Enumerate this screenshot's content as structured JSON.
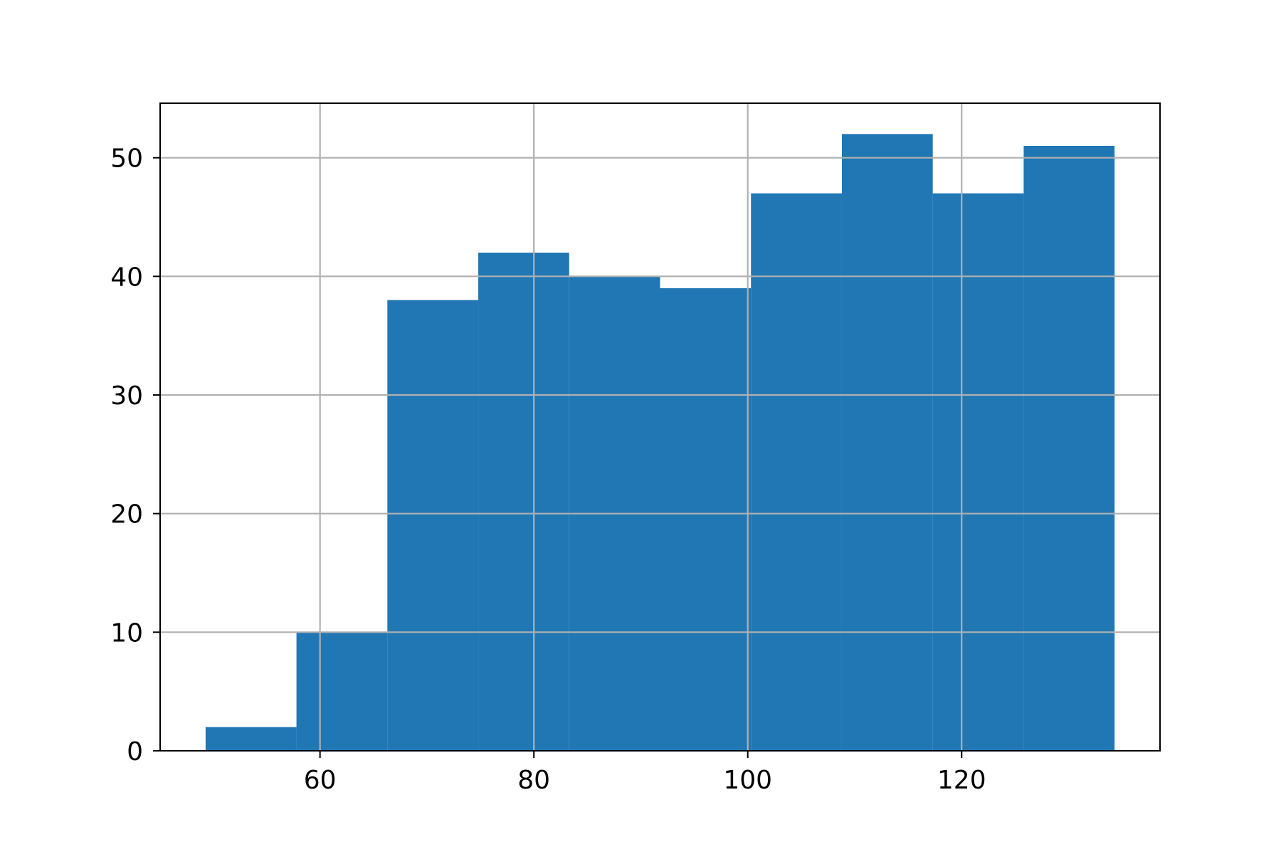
{
  "chart_data": {
    "type": "bar",
    "subtype": "histogram",
    "title": "",
    "xlabel": "",
    "ylabel": "",
    "bins": [
      {
        "x0": 49.3,
        "x1": 57.8,
        "count": 2
      },
      {
        "x0": 57.8,
        "x1": 66.3,
        "count": 10
      },
      {
        "x0": 66.3,
        "x1": 74.8,
        "count": 38
      },
      {
        "x0": 74.8,
        "x1": 83.3,
        "count": 42
      },
      {
        "x0": 83.3,
        "x1": 91.8,
        "count": 40
      },
      {
        "x0": 91.8,
        "x1": 100.3,
        "count": 39
      },
      {
        "x0": 100.3,
        "x1": 108.8,
        "count": 47
      },
      {
        "x0": 108.8,
        "x1": 117.3,
        "count": 52
      },
      {
        "x0": 117.3,
        "x1": 125.8,
        "count": 47
      },
      {
        "x0": 125.8,
        "x1": 134.3,
        "count": 51
      }
    ],
    "xlim": [
      45.05,
      138.55
    ],
    "ylim": [
      0,
      54.6
    ],
    "xticks": [
      60,
      80,
      100,
      120
    ],
    "xtick_labels": [
      "60",
      "80",
      "100",
      "120"
    ],
    "yticks": [
      0,
      10,
      20,
      30,
      40,
      50
    ],
    "ytick_labels": [
      "0",
      "10",
      "20",
      "30",
      "40",
      "50"
    ],
    "grid": true,
    "colors": {
      "bar": "#2077b4",
      "grid": "#b0b0b0",
      "axes": "#000000",
      "background": "#ffffff"
    }
  }
}
